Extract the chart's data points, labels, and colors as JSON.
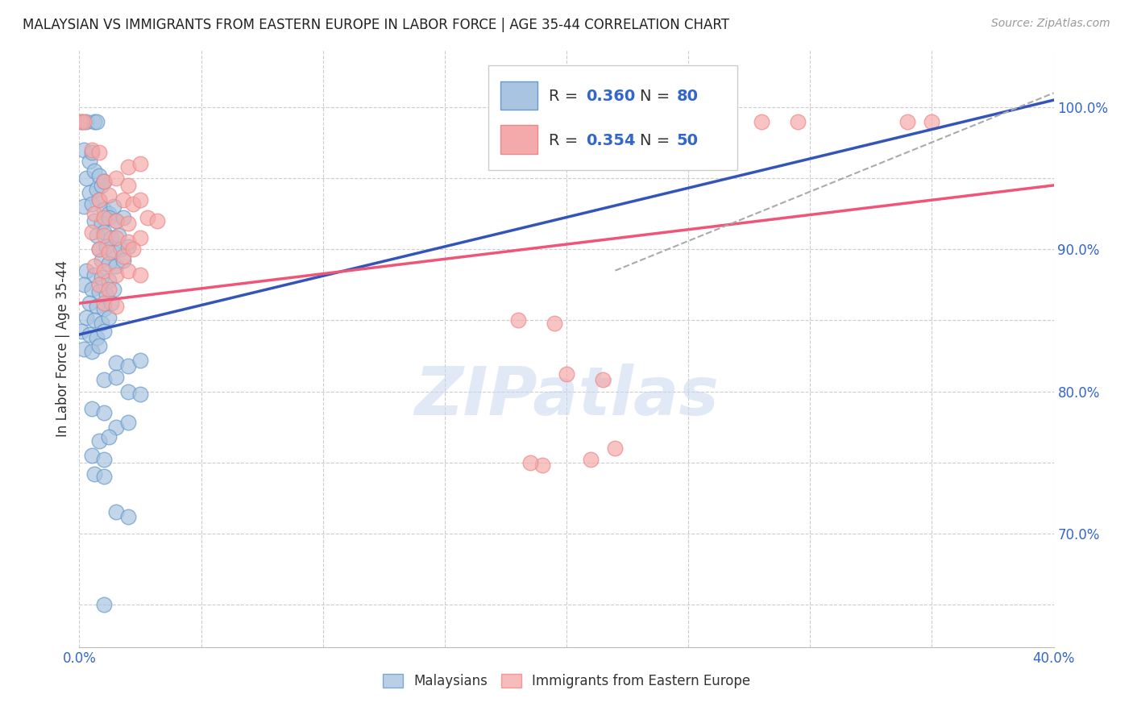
{
  "title": "MALAYSIAN VS IMMIGRANTS FROM EASTERN EUROPE IN LABOR FORCE | AGE 35-44 CORRELATION CHART",
  "source": "Source: ZipAtlas.com",
  "ylabel": "In Labor Force | Age 35-44",
  "xlim": [
    0.0,
    0.4
  ],
  "ylim": [
    0.62,
    1.04
  ],
  "blue_R": 0.36,
  "blue_N": 80,
  "pink_R": 0.354,
  "pink_N": 50,
  "blue_color": "#A8C4E0",
  "pink_color": "#F4AAAA",
  "blue_edge_color": "#6699CC",
  "pink_edge_color": "#EE8888",
  "blue_line_color": "#3355BB",
  "pink_line_color": "#EE5577",
  "gray_dash_color": "#AAAAAA",
  "blue_line": [
    [
      0.0,
      0.84
    ],
    [
      0.4,
      1.005
    ]
  ],
  "pink_line": [
    [
      0.0,
      0.862
    ],
    [
      0.4,
      0.945
    ]
  ],
  "gray_dashed_line": [
    [
      0.22,
      0.885
    ],
    [
      0.4,
      1.01
    ]
  ],
  "blue_scatter": [
    [
      0.001,
      0.99
    ],
    [
      0.003,
      0.99
    ],
    [
      0.006,
      0.99
    ],
    [
      0.007,
      0.99
    ],
    [
      0.002,
      0.97
    ],
    [
      0.004,
      0.962
    ],
    [
      0.005,
      0.968
    ],
    [
      0.003,
      0.95
    ],
    [
      0.006,
      0.955
    ],
    [
      0.008,
      0.952
    ],
    [
      0.004,
      0.94
    ],
    [
      0.007,
      0.942
    ],
    [
      0.009,
      0.945
    ],
    [
      0.01,
      0.948
    ],
    [
      0.002,
      0.93
    ],
    [
      0.005,
      0.932
    ],
    [
      0.008,
      0.935
    ],
    [
      0.01,
      0.928
    ],
    [
      0.012,
      0.925
    ],
    [
      0.014,
      0.93
    ],
    [
      0.006,
      0.92
    ],
    [
      0.009,
      0.918
    ],
    [
      0.012,
      0.922
    ],
    [
      0.015,
      0.92
    ],
    [
      0.018,
      0.922
    ],
    [
      0.007,
      0.91
    ],
    [
      0.01,
      0.912
    ],
    [
      0.013,
      0.908
    ],
    [
      0.016,
      0.91
    ],
    [
      0.008,
      0.9
    ],
    [
      0.011,
      0.902
    ],
    [
      0.014,
      0.898
    ],
    [
      0.017,
      0.9
    ],
    [
      0.02,
      0.902
    ],
    [
      0.009,
      0.892
    ],
    [
      0.012,
      0.89
    ],
    [
      0.015,
      0.888
    ],
    [
      0.018,
      0.892
    ],
    [
      0.003,
      0.885
    ],
    [
      0.006,
      0.882
    ],
    [
      0.009,
      0.88
    ],
    [
      0.012,
      0.878
    ],
    [
      0.002,
      0.875
    ],
    [
      0.005,
      0.872
    ],
    [
      0.008,
      0.87
    ],
    [
      0.011,
      0.868
    ],
    [
      0.014,
      0.872
    ],
    [
      0.004,
      0.862
    ],
    [
      0.007,
      0.86
    ],
    [
      0.01,
      0.858
    ],
    [
      0.013,
      0.862
    ],
    [
      0.003,
      0.852
    ],
    [
      0.006,
      0.85
    ],
    [
      0.009,
      0.848
    ],
    [
      0.012,
      0.852
    ],
    [
      0.001,
      0.842
    ],
    [
      0.004,
      0.84
    ],
    [
      0.007,
      0.838
    ],
    [
      0.01,
      0.842
    ],
    [
      0.002,
      0.83
    ],
    [
      0.005,
      0.828
    ],
    [
      0.008,
      0.832
    ],
    [
      0.015,
      0.82
    ],
    [
      0.02,
      0.818
    ],
    [
      0.025,
      0.822
    ],
    [
      0.01,
      0.808
    ],
    [
      0.015,
      0.81
    ],
    [
      0.02,
      0.8
    ],
    [
      0.025,
      0.798
    ],
    [
      0.005,
      0.788
    ],
    [
      0.01,
      0.785
    ],
    [
      0.015,
      0.775
    ],
    [
      0.02,
      0.778
    ],
    [
      0.008,
      0.765
    ],
    [
      0.012,
      0.768
    ],
    [
      0.005,
      0.755
    ],
    [
      0.01,
      0.752
    ],
    [
      0.006,
      0.742
    ],
    [
      0.01,
      0.74
    ],
    [
      0.015,
      0.715
    ],
    [
      0.02,
      0.712
    ],
    [
      0.01,
      0.65
    ]
  ],
  "pink_scatter": [
    [
      0.001,
      0.99
    ],
    [
      0.002,
      0.99
    ],
    [
      0.28,
      0.99
    ],
    [
      0.295,
      0.99
    ],
    [
      0.34,
      0.99
    ],
    [
      0.35,
      0.99
    ],
    [
      0.005,
      0.97
    ],
    [
      0.008,
      0.968
    ],
    [
      0.02,
      0.958
    ],
    [
      0.025,
      0.96
    ],
    [
      0.01,
      0.948
    ],
    [
      0.015,
      0.95
    ],
    [
      0.02,
      0.945
    ],
    [
      0.008,
      0.935
    ],
    [
      0.012,
      0.938
    ],
    [
      0.018,
      0.935
    ],
    [
      0.022,
      0.932
    ],
    [
      0.025,
      0.935
    ],
    [
      0.006,
      0.925
    ],
    [
      0.01,
      0.922
    ],
    [
      0.015,
      0.92
    ],
    [
      0.02,
      0.918
    ],
    [
      0.028,
      0.922
    ],
    [
      0.032,
      0.92
    ],
    [
      0.005,
      0.912
    ],
    [
      0.01,
      0.91
    ],
    [
      0.015,
      0.908
    ],
    [
      0.02,
      0.905
    ],
    [
      0.025,
      0.908
    ],
    [
      0.008,
      0.9
    ],
    [
      0.012,
      0.898
    ],
    [
      0.018,
      0.895
    ],
    [
      0.022,
      0.9
    ],
    [
      0.006,
      0.888
    ],
    [
      0.01,
      0.885
    ],
    [
      0.015,
      0.882
    ],
    [
      0.02,
      0.885
    ],
    [
      0.025,
      0.882
    ],
    [
      0.008,
      0.875
    ],
    [
      0.012,
      0.872
    ],
    [
      0.01,
      0.862
    ],
    [
      0.015,
      0.86
    ],
    [
      0.18,
      0.85
    ],
    [
      0.195,
      0.848
    ],
    [
      0.2,
      0.812
    ],
    [
      0.215,
      0.808
    ],
    [
      0.22,
      0.76
    ],
    [
      0.19,
      0.748
    ],
    [
      0.185,
      0.75
    ],
    [
      0.21,
      0.752
    ]
  ],
  "xtick_positions": [
    0.0,
    0.05,
    0.1,
    0.15,
    0.2,
    0.25,
    0.3,
    0.35,
    0.4
  ],
  "xtick_labels": [
    "0.0%",
    "",
    "",
    "",
    "",
    "",
    "",
    "",
    "40.0%"
  ],
  "ytick_positions": [
    0.7,
    0.8,
    0.9,
    1.0
  ],
  "ytick_labels": [
    "70.0%",
    "80.0%",
    "90.0%",
    "100.0%"
  ],
  "grid_yticks": [
    0.65,
    0.7,
    0.75,
    0.8,
    0.85,
    0.9,
    0.95,
    1.0
  ],
  "watermark_text": "ZIPatlas",
  "background_color": "#FFFFFF",
  "grid_color": "#CCCCCC",
  "tick_color": "#3366CC",
  "title_color": "#222222",
  "source_color": "#999999",
  "ylabel_color": "#333333"
}
